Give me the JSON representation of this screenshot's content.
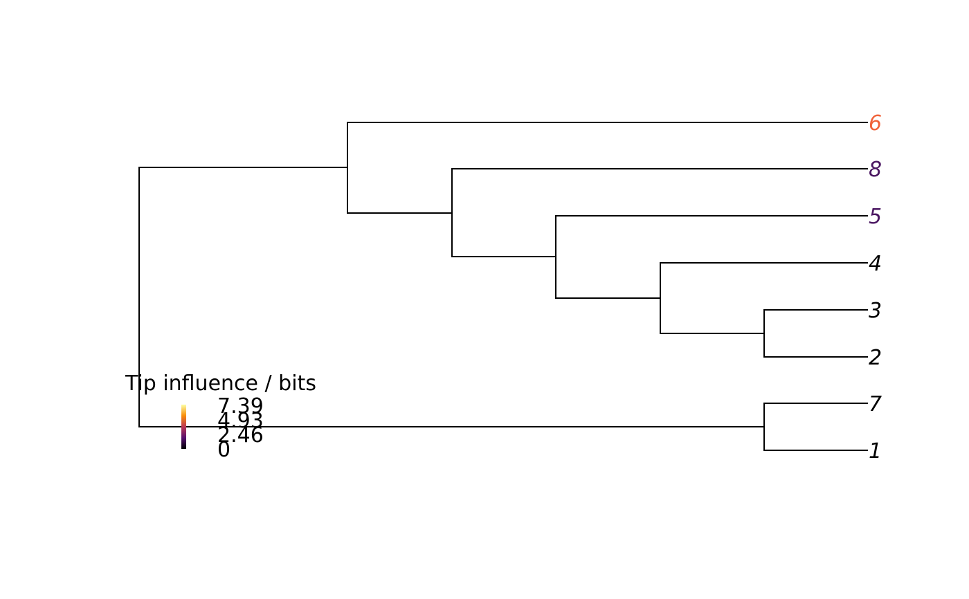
{
  "tree": {
    "tips": [
      {
        "label": "6",
        "color": "#F0623A"
      },
      {
        "label": "8",
        "color": "#4A1661"
      },
      {
        "label": "5",
        "color": "#4A1661"
      },
      {
        "label": "4",
        "color": "#000000"
      },
      {
        "label": "3",
        "color": "#000000"
      },
      {
        "label": "2",
        "color": "#000000"
      },
      {
        "label": "7",
        "color": "#000000"
      },
      {
        "label": "1",
        "color": "#000000"
      }
    ],
    "topology": "((6,(8,(5,(4,(3,2))))),(7,1))"
  },
  "legend": {
    "title": "Tip influence / bits",
    "ticks": [
      "7.39",
      "4.93",
      "2.46",
      "0"
    ],
    "gradient": [
      "#FCFFA4",
      "#F98E09",
      "#BC3754",
      "#57106E",
      "#000004"
    ]
  }
}
